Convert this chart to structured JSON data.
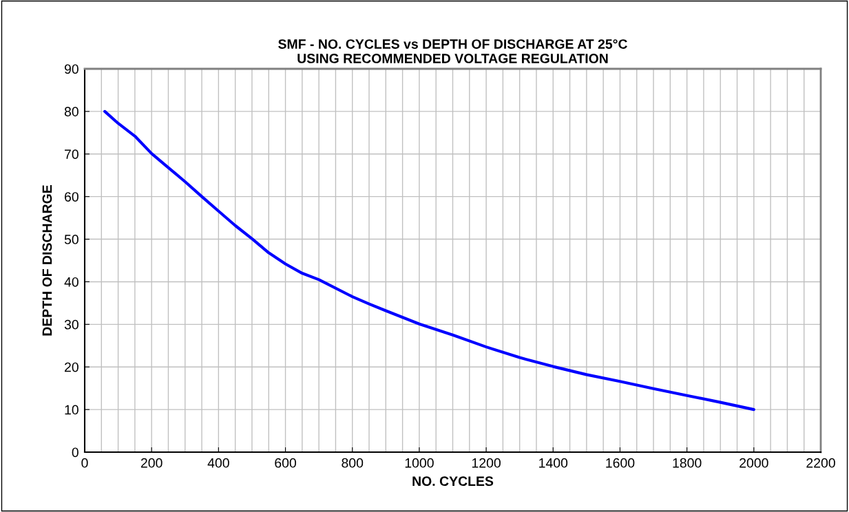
{
  "chart_data": {
    "type": "line",
    "title": "SMF - NO. CYCLES vs DEPTH OF DISCHARGE AT 25°C\nUSING RECOMMENDED VOLTAGE REGULATION",
    "xlabel": "NO. CYCLES",
    "ylabel": "DEPTH OF DISCHARGE",
    "series": [
      {
        "color": "#0000ff",
        "x": [
          60,
          100,
          150,
          200,
          250,
          300,
          350,
          400,
          450,
          500,
          550,
          600,
          650,
          700,
          800,
          850,
          900,
          1000,
          1100,
          1200,
          1300,
          1400,
          1500,
          1600,
          1700,
          1800,
          1900,
          2000
        ],
        "values": [
          80,
          77.2,
          74.2,
          70.1,
          66.8,
          63.5,
          60,
          56.6,
          53.2,
          50.1,
          46.8,
          44.2,
          42,
          40.5,
          36.5,
          34.8,
          33.2,
          30.1,
          27.5,
          24.7,
          22.2,
          20.1,
          18.2,
          16.6,
          14.9,
          13.3,
          11.7,
          10
        ]
      }
    ],
    "xlim": [
      0,
      2200
    ],
    "ylim": [
      0,
      90
    ],
    "xticks": [
      0,
      {
        "value": 50,
        "label": null
      },
      {
        "value": 100,
        "label": null
      },
      {
        "value": 150,
        "label": null
      },
      200,
      {
        "value": 250,
        "label": null
      },
      {
        "value": 300,
        "label": null
      },
      {
        "value": 350,
        "label": null
      },
      400,
      {
        "value": 450,
        "label": null
      },
      {
        "value": 500,
        "label": null
      },
      {
        "value": 550,
        "label": null
      },
      600,
      {
        "value": 650,
        "label": null
      },
      {
        "value": 700,
        "label": null
      },
      {
        "value": 750,
        "label": null
      },
      800,
      {
        "value": 850,
        "label": null
      },
      {
        "value": 900,
        "label": null
      },
      {
        "value": 950,
        "label": null
      },
      1000,
      {
        "value": 1050,
        "label": null
      },
      {
        "value": 1100,
        "label": null
      },
      {
        "value": 1150,
        "label": null
      },
      1200,
      {
        "value": 1250,
        "label": null
      },
      {
        "value": 1300,
        "label": null
      },
      {
        "value": 1350,
        "label": null
      },
      1400,
      {
        "value": 1450,
        "label": null
      },
      {
        "value": 1500,
        "label": null
      },
      {
        "value": 1550,
        "label": null
      },
      1600,
      {
        "value": 1650,
        "label": null
      },
      {
        "value": 1700,
        "label": null
      },
      {
        "value": 1750,
        "label": null
      },
      1800,
      {
        "value": 1850,
        "label": null
      },
      {
        "value": 1900,
        "label": null
      },
      {
        "value": 1950,
        "label": null
      },
      2000,
      {
        "value": 2050,
        "label": null
      },
      {
        "value": 2100,
        "label": null
      },
      {
        "value": 2150,
        "label": null
      },
      2200
    ],
    "yticks": [
      0,
      10,
      20,
      30,
      40,
      50,
      60,
      70,
      80,
      90
    ],
    "grid": true,
    "marker": "none",
    "line_style": "solid"
  }
}
